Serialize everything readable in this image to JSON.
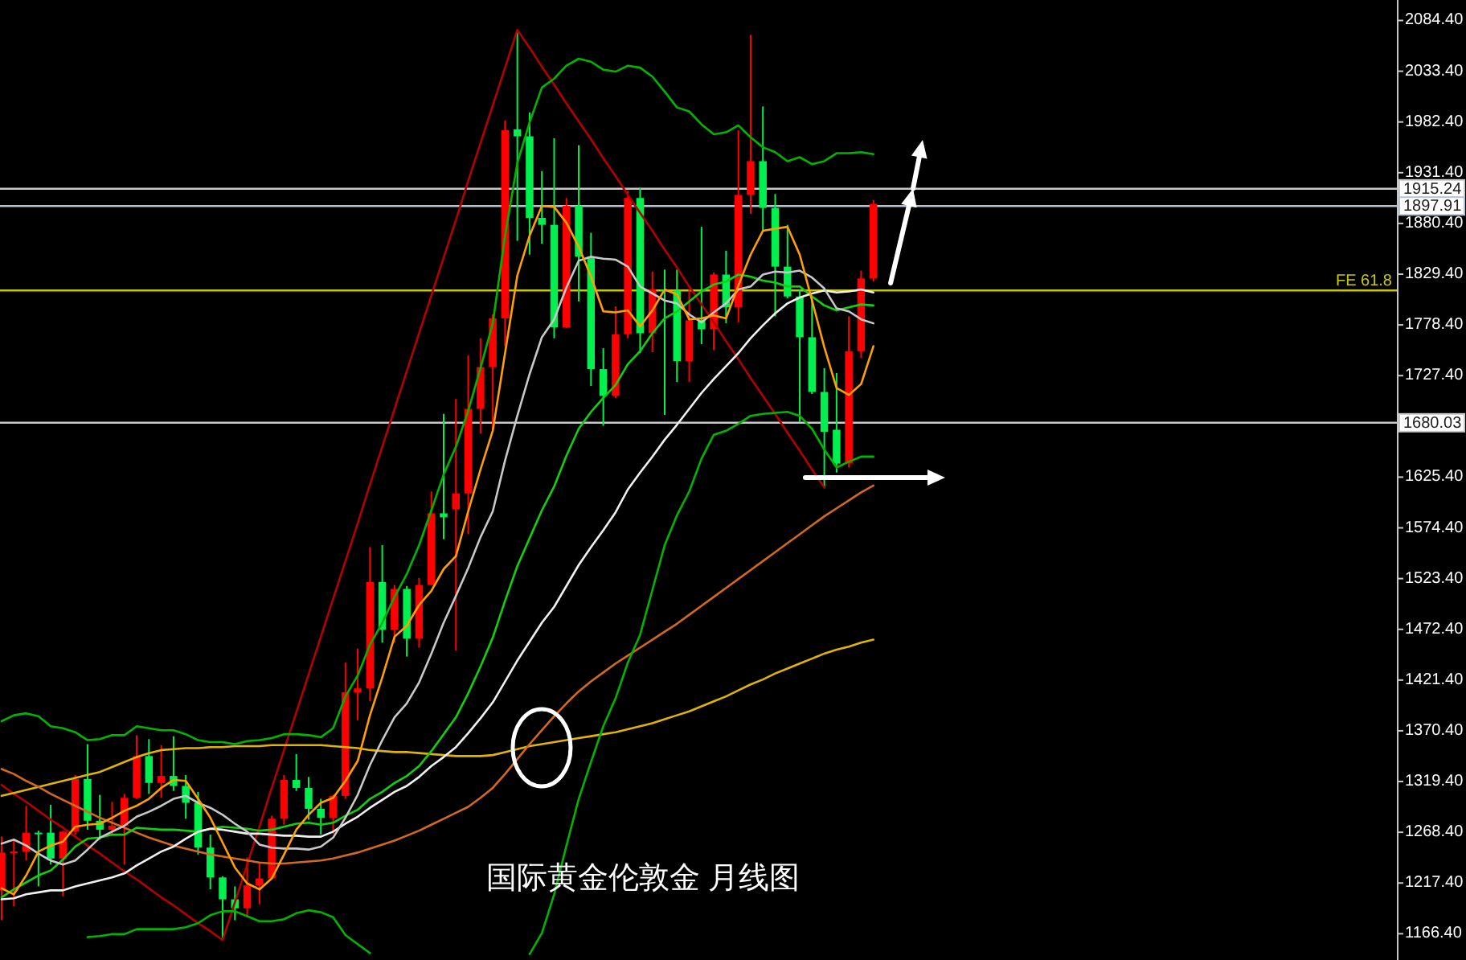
{
  "chart_data": {
    "type": "candlestick",
    "title": "国际黄金伦敦金 月线图",
    "categories": [
      null,
      null,
      null,
      null,
      null,
      null,
      null,
      null,
      null,
      null,
      null,
      null,
      null,
      null,
      null,
      null,
      null,
      null,
      null,
      null,
      null,
      null,
      null,
      null,
      null,
      null,
      null,
      null,
      null,
      null,
      null,
      null,
      null,
      null,
      null,
      null,
      null,
      null,
      null,
      null,
      null,
      null,
      null,
      null,
      null,
      null,
      null,
      null,
      null,
      null,
      null,
      null,
      null,
      null,
      null,
      null,
      null,
      null,
      null,
      null,
      null,
      null,
      null,
      null,
      null,
      null,
      null,
      null,
      null,
      null,
      null,
      null
    ],
    "ohlc": [
      [
        1210,
        1264,
        1180,
        1248
      ],
      [
        1248,
        1261,
        1194,
        1249
      ],
      [
        1249,
        1295,
        1240,
        1268
      ],
      [
        1268,
        1270,
        1214,
        1268
      ],
      [
        1268,
        1296,
        1236,
        1242
      ],
      [
        1242,
        1270,
        1204,
        1269
      ],
      [
        1269,
        1326,
        1266,
        1322
      ],
      [
        1322,
        1357,
        1271,
        1280
      ],
      [
        1280,
        1306,
        1261,
        1271
      ],
      [
        1271,
        1299,
        1265,
        1275
      ],
      [
        1275,
        1307,
        1236,
        1303
      ],
      [
        1303,
        1366,
        1302,
        1345
      ],
      [
        1345,
        1362,
        1307,
        1318
      ],
      [
        1318,
        1356,
        1303,
        1325
      ],
      [
        1325,
        1365,
        1310,
        1315
      ],
      [
        1315,
        1326,
        1282,
        1298
      ],
      [
        1298,
        1309,
        1246,
        1253
      ],
      [
        1253,
        1266,
        1211,
        1223
      ],
      [
        1223,
        1224,
        1160,
        1201
      ],
      [
        1201,
        1214,
        1180,
        1192
      ],
      [
        1192,
        1243,
        1183,
        1215
      ],
      [
        1215,
        1237,
        1196,
        1222
      ],
      [
        1222,
        1285,
        1221,
        1282
      ],
      [
        1282,
        1326,
        1276,
        1321
      ],
      [
        1321,
        1347,
        1310,
        1313
      ],
      [
        1313,
        1324,
        1281,
        1292
      ],
      [
        1292,
        1302,
        1266,
        1283
      ],
      [
        1283,
        1306,
        1267,
        1305
      ],
      [
        1305,
        1439,
        1302,
        1409
      ],
      [
        1409,
        1453,
        1381,
        1413
      ],
      [
        1413,
        1555,
        1400,
        1520
      ],
      [
        1520,
        1557,
        1459,
        1472
      ],
      [
        1472,
        1517,
        1459,
        1513
      ],
      [
        1513,
        1516,
        1445,
        1463
      ],
      [
        1463,
        1524,
        1454,
        1517
      ],
      [
        1517,
        1611,
        1517,
        1589
      ],
      [
        1589,
        1689,
        1563,
        1585
      ],
      [
        1593,
        1704,
        1451,
        1609
      ],
      [
        1609,
        1748,
        1568,
        1694
      ],
      [
        1694,
        1765,
        1669,
        1736
      ],
      [
        1736,
        1789,
        1671,
        1785
      ],
      [
        1785,
        1984,
        1757,
        1974
      ],
      [
        1975,
        2075,
        1863,
        1968
      ],
      [
        1968,
        1992,
        1849,
        1886
      ],
      [
        1886,
        1933,
        1860,
        1879
      ],
      [
        1879,
        1966,
        1765,
        1776
      ],
      [
        1776,
        1906,
        1775,
        1898
      ],
      [
        1898,
        1959,
        1802,
        1847
      ],
      [
        1847,
        1871,
        1717,
        1734
      ],
      [
        1734,
        1755,
        1677,
        1707
      ],
      [
        1707,
        1797,
        1705,
        1769
      ],
      [
        1769,
        1913,
        1765,
        1906
      ],
      [
        1906,
        1916,
        1750,
        1770
      ],
      [
        1770,
        1832,
        1751,
        1814
      ],
      [
        1814,
        1834,
        1688,
        1813
      ],
      [
        1813,
        1834,
        1721,
        1742
      ],
      [
        1742,
        1814,
        1721,
        1783
      ],
      [
        1783,
        1877,
        1759,
        1774
      ],
      [
        1774,
        1831,
        1753,
        1829
      ],
      [
        1829,
        1853,
        1780,
        1796
      ],
      [
        1796,
        1974,
        1781,
        1909
      ],
      [
        1909,
        2070,
        1890,
        1943
      ],
      [
        1943,
        1998,
        1872,
        1896
      ],
      [
        1896,
        1910,
        1787,
        1837
      ],
      [
        1837,
        1879,
        1805,
        1807
      ],
      [
        1807,
        1814,
        1681,
        1766
      ],
      [
        1766,
        1808,
        1709,
        1711
      ],
      [
        1711,
        1735,
        1615,
        1671
      ],
      [
        1673,
        1730,
        1630,
        1639
      ],
      [
        1639,
        1787,
        1635,
        1752
      ],
      [
        1752,
        1833,
        1745,
        1825
      ],
      [
        1825,
        1904,
        1822,
        1900
      ]
    ],
    "colors": [
      "#ff0000",
      "#ff0000",
      "#ff0000",
      "#00f050",
      "#00f050",
      "#ff0000",
      "#ff0000",
      "#00f050",
      "#00f050",
      "#ff0000",
      "#ff0000",
      "#ff0000",
      "#00f050",
      "#ff0000",
      "#00f050",
      "#00f050",
      "#00f050",
      "#00f050",
      "#00f050",
      "#00f050",
      "#ff0000",
      "#ff0000",
      "#ff0000",
      "#ff0000",
      "#00f050",
      "#00f050",
      "#00f050",
      "#ff0000",
      "#ff0000",
      "#ff0000",
      "#ff0000",
      "#00f050",
      "#ff0000",
      "#00f050",
      "#ff0000",
      "#ff0000",
      "#00f050",
      "#ff0000",
      "#ff0000",
      "#ff0000",
      "#ff0000",
      "#ff0000",
      "#00f050",
      "#00f050",
      "#00f050",
      "#00f050",
      "#ff0000",
      "#00f050",
      "#00f050",
      "#00f050",
      "#ff0000",
      "#ff0000",
      "#00f050",
      "#ff0000",
      "#00f050",
      "#00f050",
      "#ff0000",
      "#00f050",
      "#ff0000",
      "#00f050",
      "#ff0000",
      "#ff0000",
      "#00f050",
      "#00f050",
      "#00f050",
      "#00f050",
      "#00f050",
      "#00f050",
      "#00f050",
      "#ff0000",
      "#ff0000",
      "#ff0000"
    ],
    "series": [
      {
        "type": "line",
        "color": "#b40000",
        "values": [
          1316,
          1307,
          1299,
          1290,
          1281,
          1273,
          1264,
          1255,
          1247,
          1238,
          1229,
          1221,
          1212,
          1203,
          1195,
          1186,
          1177,
          1169,
          1160,
          1198,
          1236,
          1274,
          1313,
          1351,
          1389,
          1427,
          1465,
          1503,
          1541,
          1579,
          1618,
          1656,
          1694,
          1732,
          1770,
          1808,
          1846,
          1884,
          1923,
          1961,
          1999,
          2037,
          2075,
          2057,
          2038,
          2020,
          2001,
          1983,
          1965,
          1946,
          1928,
          1909,
          1891,
          1873,
          1854,
          1836,
          1817,
          1799,
          1781,
          1762,
          1744,
          1725,
          1707,
          1689,
          1670,
          1652,
          1633,
          1615,
          null,
          null,
          null,
          null
        ]
      },
      {
        "type": "line",
        "color": "#e0b400",
        "values": [
          1305,
          1308,
          1311,
          1314,
          1317,
          1320,
          1323,
          1326,
          1329,
          1334,
          1339,
          1344,
          1348,
          1351,
          1352,
          1353,
          1353,
          1354,
          1354,
          1355,
          1355,
          1355,
          1356,
          1356,
          1356,
          1356,
          1356,
          1355,
          1354,
          1353,
          1351,
          1350,
          1349,
          1349,
          1348,
          1347,
          1346,
          1345,
          1345,
          1345,
          1346,
          1349,
          1352,
          1355,
          1357,
          1359,
          1361,
          1363,
          1365,
          1367,
          1369,
          1372,
          1375,
          1378,
          1382,
          1386,
          1390,
          1395,
          1400,
          1405,
          1411,
          1417,
          1422,
          1428,
          1433,
          1438,
          1443,
          1448,
          1452,
          1455,
          1459,
          1462
        ]
      },
      {
        "type": "line",
        "color": "#d2691e",
        "values": [
          1332,
          1327,
          1320,
          1314,
          1307,
          1301,
          1295,
          1289,
          1283,
          1278,
          1273,
          1268,
          1263,
          1259,
          1255,
          1252,
          1249,
          1246,
          1244,
          1242,
          1240,
          1238,
          1237,
          1237,
          1238,
          1239,
          1240,
          1242,
          1245,
          1248,
          1252,
          1256,
          1260,
          1265,
          1270,
          1276,
          1282,
          1288,
          1294,
          1303,
          1313,
          1327,
          1342,
          1357,
          1371,
          1385,
          1398,
          1410,
          1420,
          1429,
          1438,
          1446,
          1454,
          1462,
          1470,
          1478,
          1487,
          1496,
          1505,
          1514,
          1523,
          1532,
          1541,
          1550,
          1559,
          1568,
          1577,
          1586,
          1594,
          1602,
          1610,
          1617
        ]
      },
      {
        "type": "line",
        "color": "#00b400",
        "values": [
          1380,
          1386,
          1388,
          1385,
          1375,
          1373,
          1369,
          1361,
          1362,
          1366,
          1366,
          1375,
          1373,
          1371,
          1371,
          1367,
          1361,
          1359,
          1359,
          1357,
          1360,
          1361,
          1363,
          1367,
          1367,
          1366,
          1364,
          1373,
          1405,
          1426,
          1457,
          1479,
          1505,
          1528,
          1557,
          1592,
          1628,
          1656,
          1692,
          1735,
          1780,
          1868,
          1941,
          1982,
          2017,
          2026,
          2039,
          2046,
          2043,
          2035,
          2033,
          2039,
          2037,
          2028,
          2013,
          1997,
          1993,
          1980,
          1970,
          1972,
          1979,
          1967,
          1957,
          1952,
          1943,
          1947,
          1940,
          1943,
          1951,
          1951,
          1952,
          1950
        ]
      },
      {
        "type": "line",
        "color": "#00b400",
        "values": [
          null,
          null,
          null,
          null,
          null,
          null,
          null,
          1163,
          1164,
          1166,
          1166,
          1171,
          1171,
          1171,
          1171,
          1173,
          1177,
          1185,
          1189,
          1189,
          1184,
          1179,
          1179,
          1181,
          1187,
          1190,
          1188,
          1183,
          1165,
          1156,
          1147,
          null,
          null,
          null,
          null,
          null,
          null,
          null,
          null,
          null,
          null,
          null,
          null,
          1146,
          1167,
          1206,
          1255,
          1302,
          1339,
          1375,
          1403,
          1439,
          1467,
          1512,
          1557,
          1587,
          1611,
          1644,
          1668,
          1672,
          1679,
          1687,
          1689,
          1690,
          1691,
          1687,
          1674,
          1653,
          1635,
          1641,
          1646,
          1646
        ]
      },
      {
        "type": "line",
        "color": "#10d010",
        "values": [
          1203,
          1211,
          1218,
          1225,
          1230,
          1241,
          1254,
          1262,
          1263,
          1266,
          1266,
          1273,
          1272,
          1271,
          1271,
          1270,
          1269,
          1272,
          1274,
          1273,
          1272,
          1270,
          1271,
          1274,
          1277,
          1278,
          1276,
          1278,
          1285,
          1291,
          1302,
          1309,
          1318,
          1325,
          1335,
          1350,
          1367,
          1384,
          1408,
          1435,
          1464,
          1501,
          1536,
          1564,
          1592,
          1616,
          1647,
          1674,
          1691,
          1705,
          1718,
          1739,
          1752,
          1770,
          1785,
          1792,
          1802,
          1812,
          1819,
          1822,
          1829,
          1827,
          1823,
          1821,
          1817,
          1817,
          1807,
          1798,
          1793,
          1796,
          1799,
          1798
        ]
      },
      {
        "type": "line",
        "color": "#f0f0f0",
        "values": [
          1201,
          1202,
          1206,
          1208,
          1210,
          1210,
          1214,
          1217,
          1220,
          1223,
          1227,
          1235,
          1242,
          1249,
          1254,
          1262,
          1269,
          1272,
          1271,
          1269,
          1267,
          1267,
          1266,
          1265,
          1265,
          1264,
          1264,
          1269,
          1277,
          1284,
          1293,
          1301,
          1309,
          1315,
          1324,
          1335,
          1344,
          1354,
          1368,
          1383,
          1399,
          1420,
          1441,
          1460,
          1479,
          1495,
          1516,
          1537,
          1555,
          1572,
          1590,
          1613,
          1630,
          1646,
          1663,
          1678,
          1694,
          1710,
          1724,
          1737,
          1750,
          1765,
          1778,
          1790,
          1800,
          1806,
          1810,
          1813,
          1811,
          1812,
          1814,
          1811
        ]
      },
      {
        "type": "line",
        "color": "#c8c8c8",
        "values": [
          1257,
          1261,
          1255,
          1247,
          1240,
          1236,
          1240,
          1251,
          1263,
          1269,
          1275,
          1284,
          1289,
          1295,
          1302,
          1305,
          1298,
          1293,
          1286,
          1277,
          1269,
          1256,
          1253,
          1252,
          1252,
          1251,
          1254,
          1263,
          1283,
          1306,
          1336,
          1361,
          1384,
          1398,
          1419,
          1448,
          1479,
          1506,
          1534,
          1565,
          1591,
          1642,
          1687,
          1729,
          1766,
          1784,
          1816,
          1843,
          1847,
          1845,
          1844,
          1837,
          1817,
          1810,
          1803,
          1800,
          1789,
          1781,
          1791,
          1800,
          1814,
          1817,
          1829,
          1832,
          1831,
          1833,
          1826,
          1815,
          1795,
          1792,
          1784,
          1780
        ]
      },
      {
        "type": "line",
        "color": "#ffa000",
        "values": [
          1212,
          1206,
          1225,
          1249,
          1255,
          1259,
          1274,
          1276,
          1277,
          1283,
          1290,
          1295,
          1302,
          1313,
          1321,
          1320,
          1302,
          1283,
          1258,
          1233,
          1217,
          1211,
          1222,
          1246,
          1271,
          1286,
          1298,
          1303,
          1320,
          1340,
          1386,
          1424,
          1465,
          1476,
          1497,
          1511,
          1533,
          1546,
          1591,
          1633,
          1672,
          1750,
          1828,
          1868,
          1898,
          1897,
          1881,
          1857,
          1827,
          1792,
          1791,
          1793,
          1777,
          1793,
          1814,
          1809,
          1784,
          1785,
          1788,
          1785,
          1818,
          1849,
          1873,
          1875,
          1877,
          1849,
          1803,
          1756,
          1715,
          1708,
          1719,
          1757
        ]
      }
    ],
    "ylim": [
      1140,
      2105
    ],
    "yticks": [
      {
        "value": 1166.4,
        "label": "1166.40"
      },
      {
        "value": 1217.4,
        "label": "1217.40"
      },
      {
        "value": 1268.4,
        "label": "1268.40"
      },
      {
        "value": 1319.4,
        "label": "1319.40"
      },
      {
        "value": 1370.4,
        "label": "1370.40"
      },
      {
        "value": 1421.4,
        "label": "1421.40"
      },
      {
        "value": 1472.4,
        "label": "1472.40"
      },
      {
        "value": 1523.4,
        "label": "1523.40"
      },
      {
        "value": 1574.4,
        "label": "1574.40"
      },
      {
        "value": 1625.4,
        "label": "1625.40"
      },
      {
        "value": 1676.4,
        "label": null
      },
      {
        "value": 1727.4,
        "label": "1727.40"
      },
      {
        "value": 1778.4,
        "label": "1778.40"
      },
      {
        "value": 1829.4,
        "label": "1829.40"
      },
      {
        "value": 1880.4,
        "label": "1880.40"
      },
      {
        "value": 1931.4,
        "label": "1931.40"
      },
      {
        "value": 1982.4,
        "label": "1982.40"
      },
      {
        "value": 2033.4,
        "label": "2033.40"
      },
      {
        "value": 2084.4,
        "label": "2084.40"
      }
    ],
    "tick_labels": "y",
    "ref_lines": [
      {
        "axis": "y",
        "value": 1915.24,
        "label": "1915.24",
        "color": "#c8c8c8"
      },
      {
        "axis": "y",
        "value": 1897.91,
        "label": "1897.91",
        "color": "#b4c3d2"
      },
      {
        "axis": "y",
        "value": 1813,
        "color": "#c8c800"
      },
      {
        "axis": "y",
        "value": 1680.03,
        "label": "1680.03",
        "color": "#c8c8c8"
      }
    ],
    "annotations": [
      {
        "text": "FE 61.8",
        "y": 1813
      }
    ]
  }
}
